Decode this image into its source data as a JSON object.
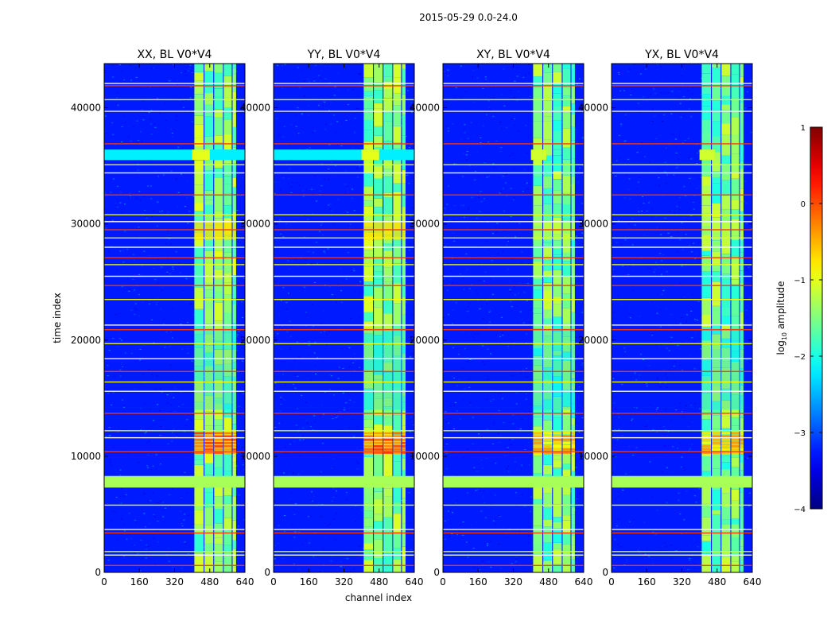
{
  "figure": {
    "suptitle": "2015-05-29 0.0-24.0"
  },
  "colors": {
    "background": "#ffffff",
    "axis": "#000000",
    "colormap": "jet"
  },
  "chart_data": {
    "type": "heatmap",
    "xlabel": "channel index",
    "ylabel": "time index",
    "xlim": [
      0,
      640
    ],
    "ylim": [
      0,
      43800
    ],
    "xticks": [
      0,
      160,
      320,
      480,
      640
    ],
    "yticks": [
      0,
      10000,
      20000,
      30000,
      40000
    ],
    "panels": [
      {
        "title": "XX, BL V0*V4",
        "cross_pol": false
      },
      {
        "title": "YY, BL V0*V4",
        "cross_pol": false
      },
      {
        "title": "XY, BL V0*V4",
        "cross_pol": true
      },
      {
        "title": "YX, BL V0*V4",
        "cross_pol": true
      }
    ],
    "colorbar": {
      "label_prefix": "log",
      "label_sub": "10",
      "label_suffix": " amplitude",
      "vmin": -4,
      "vmax": 1,
      "ticks": [
        1,
        0,
        -1,
        -2,
        -3,
        -4
      ],
      "tick_labels": [
        "1",
        "0",
        "−1",
        "−2",
        "−3",
        "−4"
      ]
    },
    "bright_channel_band": [
      410,
      600
    ],
    "channel_gaps": [
      452,
      496,
      540,
      580
    ],
    "broadband_rfi_rows": [
      {
        "t0": 7300,
        "t1": 8300,
        "level": -1.3
      },
      {
        "t0": 35500,
        "t1": 36400,
        "level": -2.2
      }
    ],
    "flag_lines": [
      600,
      1500,
      1800,
      3400,
      3700,
      5800,
      10400,
      11600,
      12200,
      13700,
      15600,
      16400,
      17300,
      18400,
      19700,
      20900,
      21300,
      23500,
      24700,
      25500,
      26500,
      27100,
      28000,
      28800,
      29500,
      30200,
      30800,
      32500,
      34400,
      35100,
      36900,
      39700,
      40700,
      41900,
      42100
    ],
    "hot_channel_band": {
      "t0": 10200,
      "t1": 11900
    }
  }
}
